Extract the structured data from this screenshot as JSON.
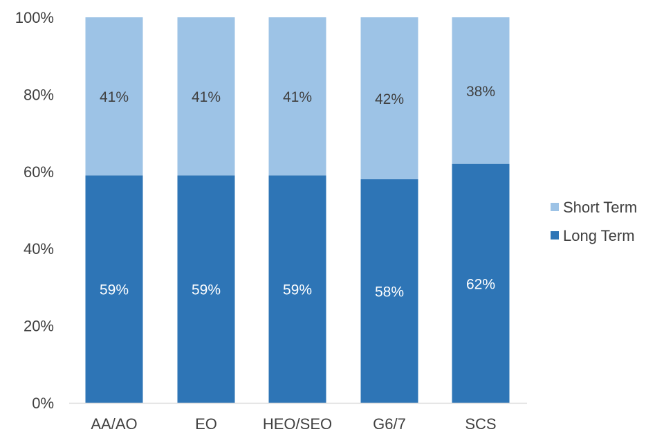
{
  "chart_data": {
    "type": "bar",
    "stacked": true,
    "normalized": true,
    "categories": [
      "AA/AO",
      "EO",
      "HEO/SEO",
      "G6/7",
      "SCS"
    ],
    "series": [
      {
        "name": "Long Term",
        "values": [
          59,
          59,
          59,
          58,
          62
        ],
        "labels": [
          "59%",
          "59%",
          "59%",
          "58%",
          "62%"
        ],
        "color": "#2E75B6"
      },
      {
        "name": "Short Term",
        "values": [
          41,
          41,
          41,
          42,
          38
        ],
        "labels": [
          "41%",
          "41%",
          "41%",
          "42%",
          "38%"
        ],
        "color": "#9DC3E6"
      }
    ],
    "y_ticks": [
      "0%",
      "20%",
      "40%",
      "60%",
      "80%",
      "100%"
    ],
    "ylim": [
      0,
      100
    ],
    "grid": false,
    "legend_position": "right",
    "legend_order": [
      "Short Term",
      "Long Term"
    ]
  }
}
